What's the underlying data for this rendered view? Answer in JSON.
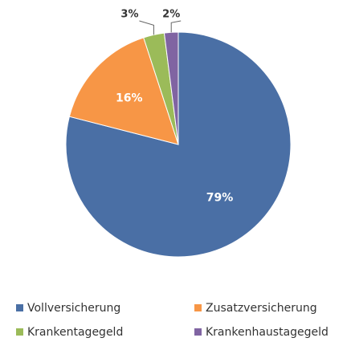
{
  "chart_data": {
    "type": "pie",
    "categories": [
      "Vollversicherung",
      "Zusatzversicherung",
      "Krankentagegeld",
      "Krankenhaustagegeld"
    ],
    "values": [
      79,
      16,
      3,
      2
    ],
    "value_labels": [
      "79%",
      "16%",
      "3%",
      "2%"
    ],
    "colors": [
      "#4a6fa5",
      "#f79646",
      "#9bbb59",
      "#8064a2"
    ],
    "legend": "bottom"
  }
}
